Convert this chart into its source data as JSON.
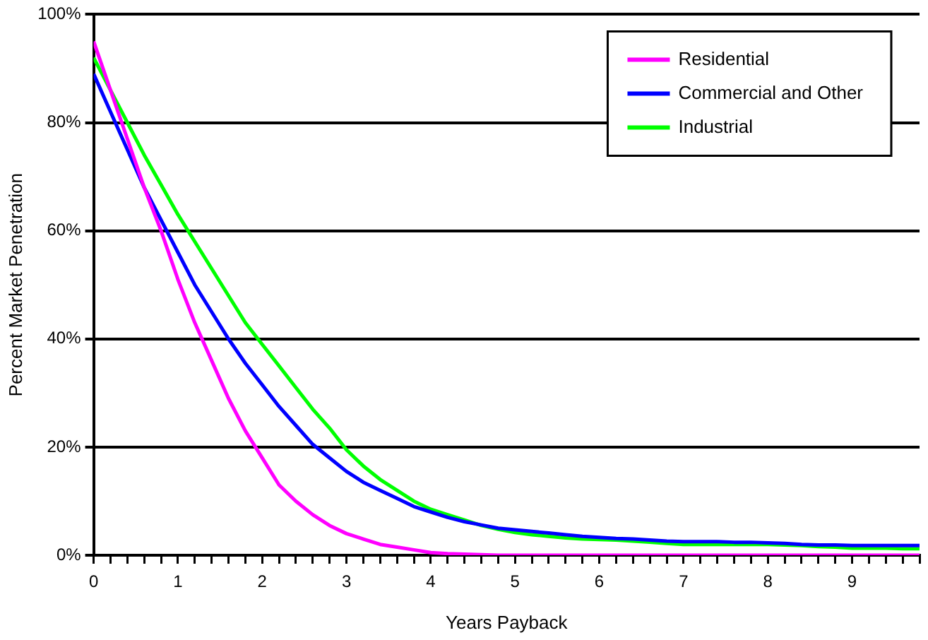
{
  "chart_data": {
    "type": "line",
    "xlabel": "Years Payback",
    "ylabel": "Percent Market Penetration",
    "x": [
      0,
      0.2,
      0.4,
      0.6,
      0.8,
      1,
      1.2,
      1.4,
      1.6,
      1.8,
      2,
      2.2,
      2.4,
      2.6,
      2.8,
      3,
      3.2,
      3.4,
      3.6,
      3.8,
      4,
      4.2,
      4.4,
      4.6,
      4.8,
      5,
      5.2,
      5.4,
      5.6,
      5.8,
      6,
      6.2,
      6.4,
      6.6,
      6.8,
      7,
      7.2,
      7.4,
      7.6,
      7.8,
      8,
      8.2,
      8.4,
      8.6,
      8.8,
      9,
      9.2,
      9.4,
      9.6,
      9.8
    ],
    "series": [
      {
        "name": "Residential",
        "color": "#ff00ff",
        "values": [
          95,
          86,
          77,
          68,
          60,
          51,
          43,
          36,
          29,
          23,
          18,
          13,
          10,
          7.5,
          5.5,
          4,
          3,
          2,
          1.5,
          1,
          0.5,
          0.3,
          0.2,
          0.1,
          0,
          0,
          0,
          0,
          0,
          0,
          0,
          0,
          0,
          0,
          0,
          0,
          0,
          0,
          0,
          0,
          0,
          0,
          0,
          0,
          0,
          0,
          0,
          0,
          0,
          0
        ]
      },
      {
        "name": "Commercial and Other",
        "color": "#0000ff",
        "values": [
          89,
          82,
          75,
          68,
          62,
          56,
          50,
          45,
          40,
          35.5,
          31.5,
          27.5,
          24,
          20.5,
          18,
          15.5,
          13.5,
          12,
          10.5,
          9,
          8,
          7,
          6.2,
          5.6,
          5,
          4.7,
          4.4,
          4.1,
          3.8,
          3.5,
          3.3,
          3.1,
          3,
          2.8,
          2.6,
          2.5,
          2.5,
          2.5,
          2.4,
          2.4,
          2.3,
          2.2,
          2,
          1.9,
          1.9,
          1.8,
          1.8,
          1.8,
          1.8,
          1.8
        ]
      },
      {
        "name": "Industrial",
        "color": "#00ff00",
        "values": [
          92,
          86,
          80,
          74,
          68.5,
          63,
          58,
          53,
          48,
          43,
          39,
          35,
          31,
          27,
          23.5,
          19.5,
          16.5,
          14,
          12,
          10,
          8.5,
          7.5,
          6.5,
          5.5,
          4.8,
          4.2,
          3.8,
          3.5,
          3.2,
          3,
          2.9,
          2.8,
          2.6,
          2.4,
          2.2,
          2,
          2,
          2,
          2,
          2,
          2,
          1.9,
          1.8,
          1.6,
          1.5,
          1.3,
          1.3,
          1.3,
          1.2,
          1.2
        ]
      }
    ],
    "xlim": [
      0,
      9.8
    ],
    "xticks": [
      0,
      {
        "value": 0.2,
        "label": null
      },
      {
        "value": 0.4,
        "label": null
      },
      {
        "value": 0.6,
        "label": null
      },
      {
        "value": 0.8,
        "label": null
      },
      1,
      {
        "value": 1.2,
        "label": null
      },
      {
        "value": 1.4,
        "label": null
      },
      {
        "value": 1.6,
        "label": null
      },
      {
        "value": 1.8,
        "label": null
      },
      2,
      {
        "value": 2.2,
        "label": null
      },
      {
        "value": 2.4,
        "label": null
      },
      {
        "value": 2.6,
        "label": null
      },
      {
        "value": 2.8,
        "label": null
      },
      3,
      {
        "value": 3.2,
        "label": null
      },
      {
        "value": 3.4,
        "label": null
      },
      {
        "value": 3.6,
        "label": null
      },
      {
        "value": 3.8,
        "label": null
      },
      4,
      {
        "value": 4.2,
        "label": null
      },
      {
        "value": 4.4,
        "label": null
      },
      {
        "value": 4.6,
        "label": null
      },
      {
        "value": 4.8,
        "label": null
      },
      5,
      {
        "value": 5.2,
        "label": null
      },
      {
        "value": 5.4,
        "label": null
      },
      {
        "value": 5.6,
        "label": null
      },
      {
        "value": 5.8,
        "label": null
      },
      6,
      {
        "value": 6.2,
        "label": null
      },
      {
        "value": 6.4,
        "label": null
      },
      {
        "value": 6.6,
        "label": null
      },
      {
        "value": 6.8,
        "label": null
      },
      7,
      {
        "value": 7.2,
        "label": null
      },
      {
        "value": 7.4,
        "label": null
      },
      {
        "value": 7.6,
        "label": null
      },
      {
        "value": 7.8,
        "label": null
      },
      8,
      {
        "value": 8.2,
        "label": null
      },
      {
        "value": 8.4,
        "label": null
      },
      {
        "value": 8.6,
        "label": null
      },
      {
        "value": 8.8,
        "label": null
      },
      9,
      {
        "value": 9.2,
        "label": null
      },
      {
        "value": 9.4,
        "label": null
      },
      {
        "value": 9.6,
        "label": null
      },
      {
        "value": 9.8,
        "label": null
      }
    ],
    "ylim": [
      0,
      100
    ],
    "yticks": [
      {
        "value": 0,
        "label": "0%"
      },
      {
        "value": 20,
        "label": "20%"
      },
      {
        "value": 40,
        "label": "40%"
      },
      {
        "value": 60,
        "label": "60%"
      },
      {
        "value": 80,
        "label": "80%"
      },
      {
        "value": 100,
        "label": "100%"
      }
    ],
    "grid": "y",
    "legend": "top right",
    "marker": "none",
    "line_style": "solid"
  }
}
